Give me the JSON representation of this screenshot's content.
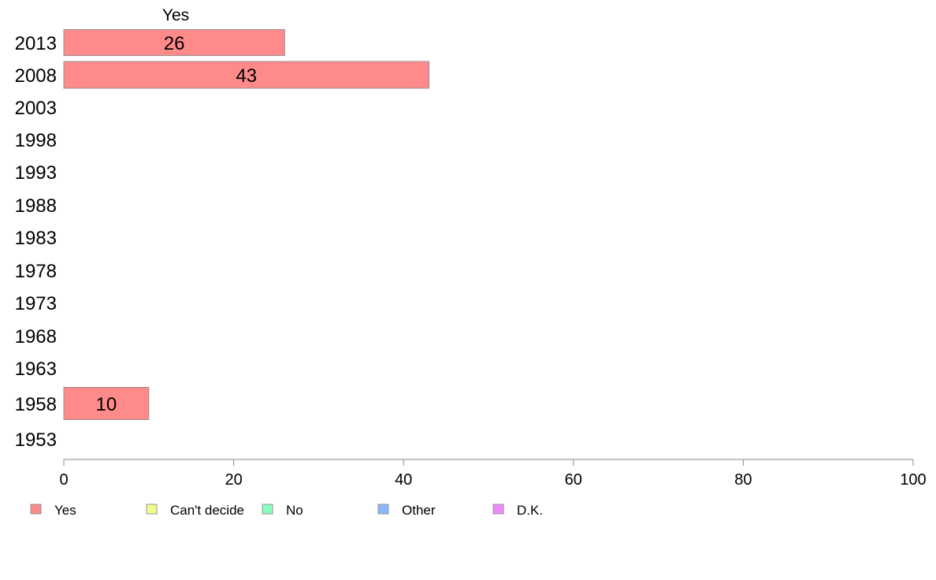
{
  "chart_data": {
    "type": "bar",
    "orientation": "horizontal",
    "series_header": "Yes",
    "categories": [
      "2013",
      "2008",
      "2003",
      "1998",
      "1993",
      "1988",
      "1983",
      "1978",
      "1973",
      "1968",
      "1963",
      "1958",
      "1953"
    ],
    "series": [
      {
        "name": "Yes",
        "color": "#FF8A8A",
        "values": [
          26,
          43,
          null,
          null,
          null,
          null,
          null,
          null,
          null,
          null,
          null,
          10,
          null
        ]
      }
    ],
    "data_labels": [
      "26",
      "43",
      "",
      "",
      "",
      "",
      "",
      "",
      "",
      "",
      "",
      "10",
      ""
    ],
    "xlim": [
      0,
      100
    ],
    "x_ticks": [
      "0",
      "20",
      "40",
      "60",
      "80",
      "100"
    ],
    "grid": false,
    "legend_placement": "bottom",
    "legend": [
      {
        "label": "Yes",
        "color": "#FF8A8A"
      },
      {
        "label": "Can't decide",
        "color": "#EEFF8A"
      },
      {
        "label": "No",
        "color": "#8AFFBE"
      },
      {
        "label": "Other",
        "color": "#8AB8FF"
      },
      {
        "label": "D.K.",
        "color": "#EE8AFF"
      }
    ]
  }
}
